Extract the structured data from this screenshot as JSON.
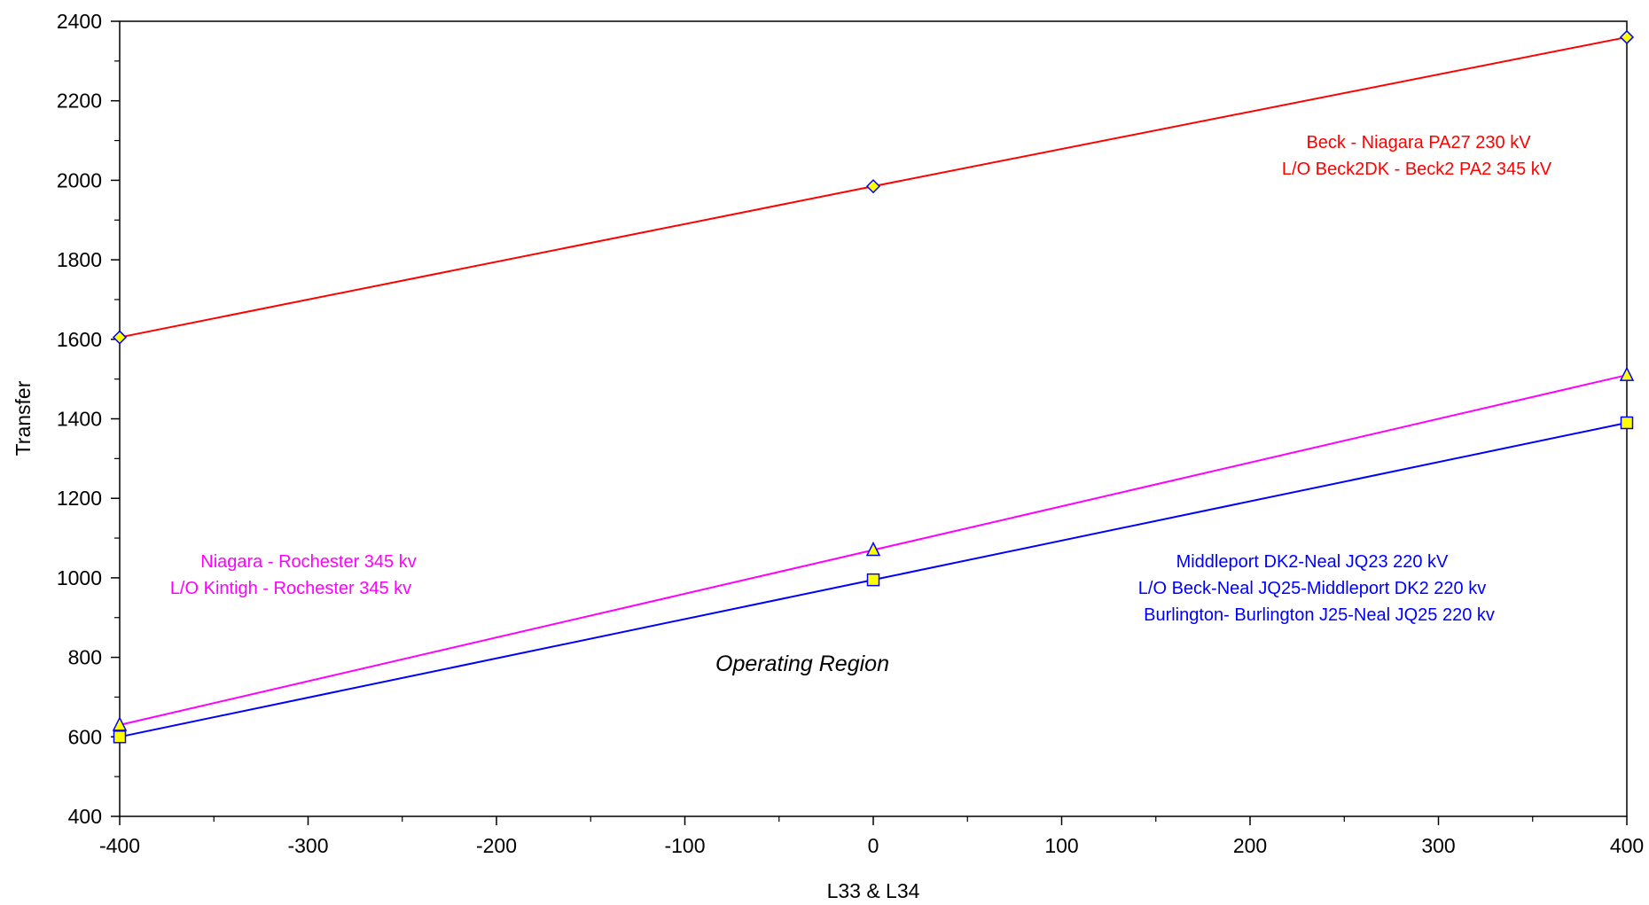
{
  "chart_data": {
    "type": "line",
    "title": "",
    "xlabel": "L33 & L34",
    "ylabel": "Transfer",
    "xlim": [
      -400,
      400
    ],
    "ylim": [
      400,
      2400
    ],
    "x_ticks": [
      -400,
      -300,
      -200,
      -100,
      0,
      100,
      200,
      300,
      400
    ],
    "y_ticks": [
      400,
      600,
      800,
      1000,
      1200,
      1400,
      1600,
      1800,
      2000,
      2200,
      2400
    ],
    "x_tick_labels": [
      "-400",
      "-300",
      "-200",
      "-100",
      "0",
      "100",
      "200",
      "300",
      "400"
    ],
    "y_tick_labels": [
      "400",
      "600",
      "800",
      "1000",
      "1200",
      "1400",
      "1600",
      "1800",
      "2000",
      "2200",
      "2400"
    ],
    "grid": false,
    "series": [
      {
        "color": "#ff0000",
        "marker": "diamond",
        "x": [
          -400,
          0,
          400
        ],
        "y": [
          1605,
          1985,
          2360
        ]
      },
      {
        "color": "#ff00ff",
        "marker": "triangle",
        "x": [
          -400,
          0,
          400
        ],
        "y": [
          630,
          1070,
          1510
        ]
      },
      {
        "color": "#0000ff",
        "marker": "square",
        "x": [
          -400,
          0,
          400
        ],
        "y": [
          600,
          995,
          1390
        ]
      }
    ],
    "annotations": [
      {
        "lines": [
          "Beck - Niagara PA27 230 kV",
          "L/O Beck2DK - Beck2 PA2 345 kV"
        ],
        "color": "#ff0000"
      },
      {
        "lines": [
          "Niagara - Rochester 345 kv",
          "L/O Kintigh - Rochester 345 kv"
        ],
        "color": "#ff00ff"
      },
      {
        "lines": [
          "Middleport DK2-Neal JQ23 220 kV",
          "L/O Beck-Neal JQ25-Middleport DK2 220 kv",
          "Burlington- Burlington J25-Neal JQ25 220 kv"
        ],
        "color": "#0000ff"
      },
      {
        "lines": [
          "Operating Region"
        ],
        "color": "#000000"
      }
    ],
    "marker_fill": "#ffff00",
    "marker_stroke": "#0000ff"
  }
}
